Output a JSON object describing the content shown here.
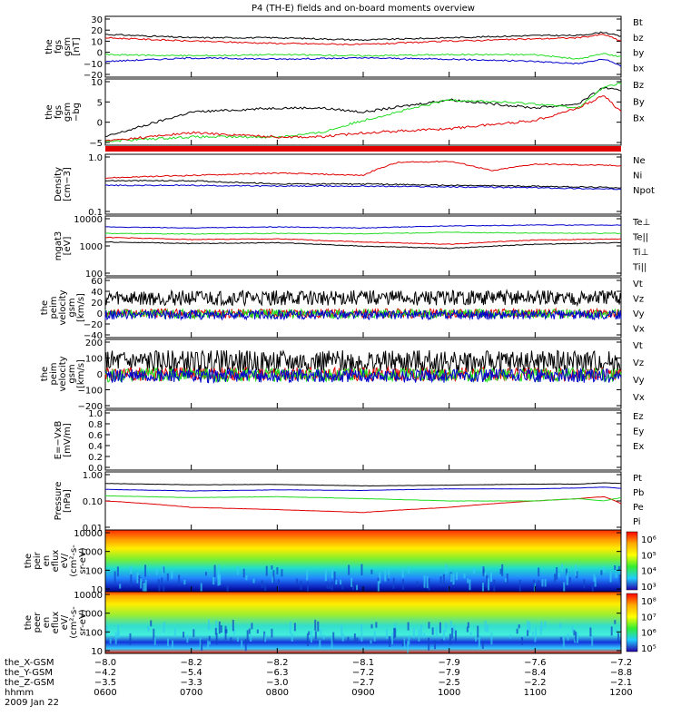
{
  "title": "P4 (TH-E) fields and on-board moments overview",
  "colors": {
    "black": "#000000",
    "red": "#e00000",
    "green": "#22dd22",
    "blue": "#0000cc"
  },
  "chart_data": [
    {
      "type": "line",
      "ylabel": [
        "the",
        "fgs",
        "gsm",
        "[nT]"
      ],
      "yticks": [
        "30",
        "20",
        "10",
        "0",
        "−10",
        "−20"
      ],
      "ylim": [
        -22,
        32
      ],
      "series": [
        {
          "name": "Bt",
          "color": "black",
          "x": [
            6,
            7,
            8,
            9,
            10,
            11,
            11.5,
            11.8,
            12
          ],
          "values": [
            16,
            13,
            13,
            11,
            13,
            15,
            15,
            18,
            14
          ]
        },
        {
          "name": "bz",
          "color": "red",
          "x": [
            6,
            7,
            8,
            9,
            10,
            11,
            11.5,
            11.8,
            12
          ],
          "values": [
            13,
            10,
            8,
            7,
            10,
            12,
            13,
            16,
            10
          ]
        },
        {
          "name": "by",
          "color": "green",
          "x": [
            6,
            7,
            8,
            9,
            10,
            11,
            11.5,
            11.8,
            12
          ],
          "values": [
            -2,
            -3,
            -2,
            -3,
            -2,
            -2,
            -6,
            -1,
            -4
          ]
        },
        {
          "name": "bx",
          "color": "blue",
          "x": [
            6,
            7,
            8,
            9,
            10,
            11,
            11.5,
            11.8,
            12
          ],
          "values": [
            -8,
            -5,
            -6,
            -5,
            -6,
            -8,
            -10,
            -6,
            -12
          ]
        }
      ]
    },
    {
      "type": "line",
      "ylabel": [
        "the",
        "fgs",
        "gsm",
        "−bg"
      ],
      "yticks": [
        "10",
        "5",
        "0",
        "−5"
      ],
      "ylim": [
        -6,
        10
      ],
      "series": [
        {
          "name": "Bz",
          "color": "black",
          "x": [
            6,
            7,
            8,
            8.5,
            9,
            10,
            11,
            11.5,
            11.8,
            12
          ],
          "values": [
            -4,
            2,
            3,
            3,
            2,
            5,
            3,
            4,
            8,
            7
          ]
        },
        {
          "name": "By",
          "color": "green",
          "x": [
            6,
            7,
            8,
            8.5,
            9,
            10,
            11,
            11.5,
            11.8,
            12
          ],
          "values": [
            -5,
            -4,
            -4,
            -3,
            0,
            5,
            4,
            3,
            8,
            9
          ]
        },
        {
          "name": "Bx",
          "color": "red",
          "x": [
            6,
            7,
            8,
            8.5,
            9,
            10,
            11,
            11.5,
            11.8,
            12
          ],
          "values": [
            -5,
            -3,
            -4,
            -4,
            -3,
            -2,
            0,
            3,
            6,
            2
          ]
        }
      ]
    },
    {
      "type": "line",
      "ylabel": [
        "Density",
        "[cm−3]"
      ],
      "yticks": [
        "1.0",
        "0.1"
      ],
      "ylim": [
        0.1,
        1.2
      ],
      "log": true,
      "series": [
        {
          "name": "Ne",
          "color": "red",
          "x": [
            6,
            7,
            8,
            9,
            9.4,
            10,
            10.5,
            11,
            12
          ],
          "values": [
            0.45,
            0.5,
            0.55,
            0.5,
            0.85,
            0.9,
            0.6,
            0.8,
            0.75
          ]
        },
        {
          "name": "Ni",
          "color": "black",
          "x": [
            6,
            7,
            8,
            9,
            10,
            11,
            12
          ],
          "values": [
            0.4,
            0.4,
            0.35,
            0.35,
            0.33,
            0.32,
            0.3
          ]
        },
        {
          "name": "Npot",
          "color": "blue",
          "x": [
            6,
            7,
            8,
            9,
            10,
            11,
            12
          ],
          "values": [
            0.33,
            0.33,
            0.32,
            0.32,
            0.31,
            0.3,
            0.28
          ]
        }
      ]
    },
    {
      "type": "line",
      "ylabel": [
        "mgat3",
        "[eV]"
      ],
      "yticks": [
        "10000",
        "1000",
        "100"
      ],
      "ylim": [
        100,
        15000
      ],
      "log": true,
      "series": [
        {
          "name": "Te⊥",
          "color": "red",
          "x": [
            6,
            7,
            8,
            9,
            10,
            11,
            12
          ],
          "values": [
            2500,
            2100,
            2200,
            1700,
            1400,
            2000,
            2200
          ]
        },
        {
          "name": "Te||",
          "color": "black",
          "x": [
            6,
            7,
            8,
            9,
            10,
            11,
            12
          ],
          "values": [
            1700,
            1500,
            1600,
            1200,
            1000,
            1400,
            1600
          ]
        },
        {
          "name": "Ti⊥",
          "color": "blue",
          "x": [
            6,
            7,
            8,
            9,
            10,
            11,
            12
          ],
          "values": [
            6000,
            5500,
            6000,
            5500,
            6500,
            7000,
            7000
          ]
        },
        {
          "name": "Ti||",
          "color": "green",
          "x": [
            6,
            7,
            8,
            9,
            10,
            11,
            12
          ],
          "values": [
            3500,
            3300,
            3500,
            3400,
            3800,
            3600,
            3500
          ]
        }
      ]
    },
    {
      "type": "line",
      "ylabel": [
        "the",
        "peim",
        "velocity",
        "gsm",
        "[km/s]"
      ],
      "yticks": [
        "60",
        "40",
        "20",
        "0",
        "−20",
        "−40"
      ],
      "ylim": [
        -45,
        65
      ],
      "series": [
        {
          "name": "Vt",
          "color": "black",
          "x": [
            6,
            12
          ],
          "values": [
            25,
            25
          ]
        },
        {
          "name": "Vz",
          "color": "red",
          "x": [
            6,
            12
          ],
          "values": [
            -2,
            -2
          ]
        },
        {
          "name": "Vy",
          "color": "green",
          "x": [
            6,
            12
          ],
          "values": [
            -3,
            -3
          ]
        },
        {
          "name": "Vx",
          "color": "blue",
          "x": [
            6,
            12
          ],
          "values": [
            -5,
            -5
          ]
        }
      ]
    },
    {
      "type": "line",
      "ylabel": [
        "the",
        "peim",
        "velocity",
        "gsm",
        "[km/s]"
      ],
      "yticks": [
        "200",
        "100",
        "0",
        "−100",
        "−200"
      ],
      "ylim": [
        -210,
        210
      ],
      "series": [
        {
          "name": "Vt",
          "color": "black",
          "x": [
            6,
            12
          ],
          "values": [
            60,
            60
          ]
        },
        {
          "name": "Vz",
          "color": "red",
          "x": [
            6,
            12
          ],
          "values": [
            -10,
            -10
          ]
        },
        {
          "name": "Vy",
          "color": "green",
          "x": [
            6,
            12
          ],
          "values": [
            -15,
            -15
          ]
        },
        {
          "name": "Vx",
          "color": "blue",
          "x": [
            6,
            12
          ],
          "values": [
            -20,
            -20
          ]
        }
      ]
    },
    {
      "type": "line",
      "ylabel": [
        "E=−VxB",
        "[mV/m]"
      ],
      "yticks": [
        "1.0",
        "0.8",
        "0.6",
        "0.4",
        "0.2",
        "0.0"
      ],
      "ylim": [
        0,
        1
      ],
      "series": [
        {
          "name": "Ez",
          "color": "red",
          "x": [],
          "values": []
        },
        {
          "name": "Ey",
          "color": "green",
          "x": [],
          "values": []
        },
        {
          "name": "Ex",
          "color": "blue",
          "x": [],
          "values": []
        }
      ]
    },
    {
      "type": "line",
      "ylabel": [
        "Pressure",
        "[nPa]"
      ],
      "yticks": [
        "1.00",
        "0.10",
        "0.01"
      ],
      "ylim": [
        0.01,
        1.0
      ],
      "log": true,
      "series": [
        {
          "name": "Pt",
          "color": "black",
          "x": [
            6,
            7,
            8,
            9,
            10,
            11,
            11.5,
            11.8,
            12
          ],
          "values": [
            0.4,
            0.36,
            0.37,
            0.33,
            0.35,
            0.38,
            0.38,
            0.42,
            0.4
          ]
        },
        {
          "name": "Pb",
          "color": "red",
          "x": [
            6,
            7,
            8,
            9,
            10,
            11,
            11.5,
            11.8,
            12
          ],
          "values": [
            0.1,
            0.06,
            0.05,
            0.04,
            0.06,
            0.1,
            0.12,
            0.14,
            0.08
          ]
        },
        {
          "name": "Pe",
          "color": "green",
          "x": [
            6,
            7,
            8,
            9,
            10,
            11,
            11.5,
            11.8,
            12
          ],
          "values": [
            0.15,
            0.13,
            0.14,
            0.12,
            0.1,
            0.1,
            0.12,
            0.1,
            0.13
          ]
        },
        {
          "name": "Pi",
          "color": "blue",
          "x": [
            6,
            7,
            8,
            9,
            10,
            11,
            11.5,
            11.8,
            12
          ],
          "values": [
            0.25,
            0.22,
            0.24,
            0.23,
            0.26,
            0.26,
            0.28,
            0.3,
            0.27
          ]
        }
      ]
    },
    {
      "type": "heatmap",
      "ylabel": [
        "the",
        "peir",
        "en",
        "eflux",
        "eV/",
        "(cm²-s-",
        "sr-eV)"
      ],
      "yticks": [
        "10000",
        "1000",
        "100",
        "10"
      ],
      "ylim": [
        7,
        20000
      ],
      "colorbar_ticks": [
        "10⁶",
        "10⁵",
        "10⁴",
        "10³"
      ]
    },
    {
      "type": "heatmap",
      "ylabel": [
        "the",
        "peer",
        "en",
        "eflux",
        "eV/",
        "(cm²-s-",
        "sr-eV)"
      ],
      "yticks": [
        "10000",
        "1000",
        "100",
        "10"
      ],
      "ylim": [
        7,
        20000
      ],
      "colorbar_ticks": [
        "10⁸",
        "10⁷",
        "10⁶",
        "10⁵"
      ]
    }
  ],
  "x_axis": {
    "rows": [
      {
        "name": "the_X-GSM",
        "values": [
          "−8.0",
          "−8.2",
          "−8.2",
          "−8.1",
          "−7.9",
          "−7.6",
          "−7.2"
        ]
      },
      {
        "name": "the_Y-GSM",
        "values": [
          "−4.2",
          "−5.4",
          "−6.3",
          "−7.2",
          "−7.9",
          "−8.4",
          "−8.8"
        ]
      },
      {
        "name": "the_Z-GSM",
        "values": [
          "−3.5",
          "−3.3",
          "−3.0",
          "−2.7",
          "−2.5",
          "−2.2",
          "−2.1"
        ]
      },
      {
        "name": "hhmm",
        "values": [
          "0600",
          "0700",
          "0800",
          "0900",
          "1000",
          "1100",
          "1200"
        ]
      }
    ],
    "date": "2009 Jan 22",
    "xlim": [
      6,
      12
    ]
  }
}
